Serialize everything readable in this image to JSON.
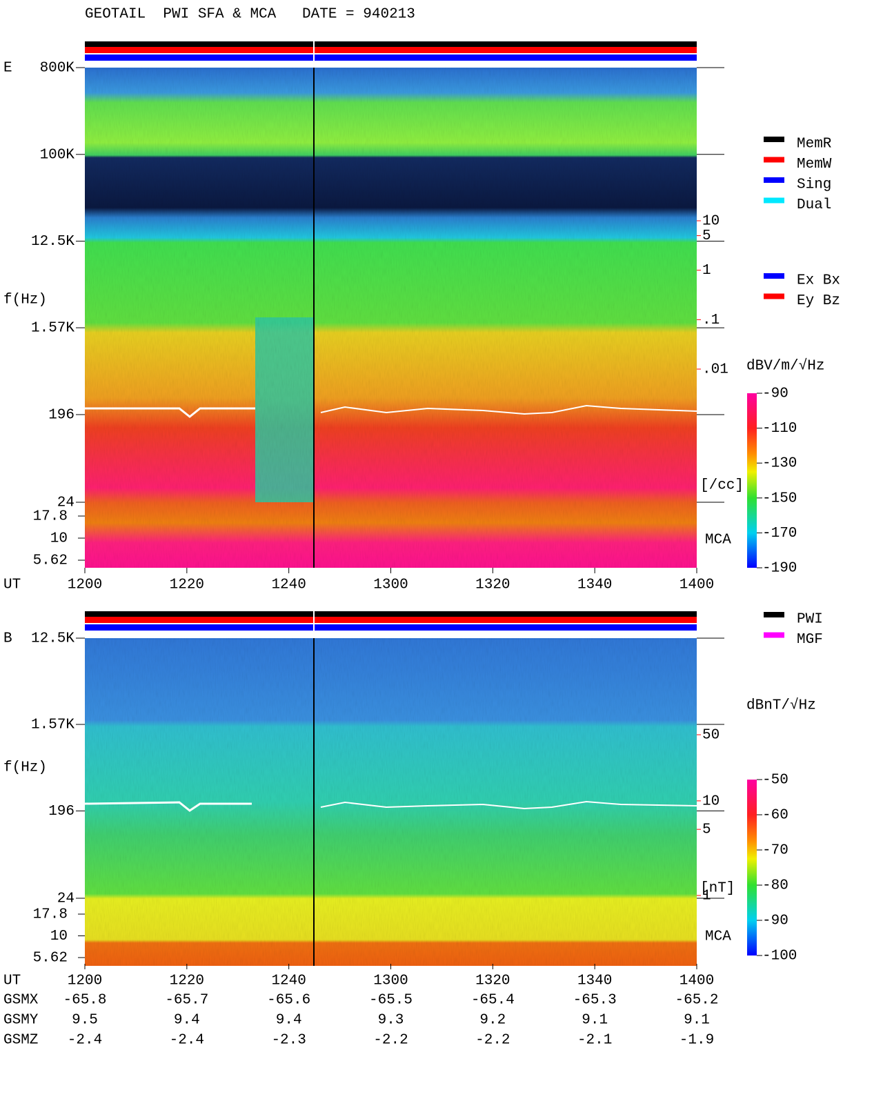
{
  "title": "GEOTAIL  PWI SFA & MCA   DATE = 940213",
  "chart_data": [
    {
      "type": "spectrogram",
      "panel": "E",
      "y_label": "f(Hz)",
      "x_label": "UT",
      "x_ticks": [
        "1200",
        "1220",
        "1240",
        "1300",
        "1320",
        "1340",
        "1400"
      ],
      "log_y": true,
      "ylim": [
        24,
        800000
      ],
      "yticks": [
        {
          "value": 800000,
          "label": "800K"
        },
        {
          "value": 100000,
          "label": "100K"
        },
        {
          "value": 12500,
          "label": "12.5K"
        },
        {
          "value": 1570,
          "label": "1.57K"
        },
        196,
        24
      ],
      "mca_label": "MCA",
      "mca_lim": [
        5.62,
        17.8
      ],
      "mca_ticks": [
        17.8,
        10,
        5.62
      ],
      "density_scale": {
        "log": true,
        "ylim": [
          0.01,
          10
        ],
        "ticks": [
          10,
          5,
          1,
          {
            "value": 0.1,
            "label": ".1"
          },
          {
            "value": 0.01,
            "label": ".01"
          }
        ],
        "unit": "[/cc]",
        "color": "#ff0000"
      },
      "colorbar": {
        "unit": "dBV/m/√Hz",
        "lim": [
          -190,
          -90
        ],
        "ticks": [
          -90,
          -110,
          -130,
          -150,
          -170,
          -190
        ]
      },
      "legend": [
        {
          "name": "MemR",
          "color": "#000000"
        },
        {
          "name": "MemW",
          "color": "#ff0000"
        },
        {
          "name": "Sing",
          "color": "#0000ff"
        },
        {
          "name": "Dual",
          "color": "#00e8ff"
        }
      ],
      "legend2": [
        {
          "name": "Ex Bx",
          "color": "#0000ff"
        },
        {
          "name": "Ey Bz",
          "color": "#ff0000"
        }
      ]
    },
    {
      "type": "spectrogram",
      "panel": "B",
      "y_label": "f(Hz)",
      "x_label": "UT",
      "x_ticks": [
        "1200",
        "1220",
        "1240",
        "1300",
        "1320",
        "1340",
        "1400"
      ],
      "log_y": true,
      "ylim": [
        24,
        12500
      ],
      "yticks": [
        {
          "value": 12500,
          "label": "12.5K"
        },
        {
          "value": 1570,
          "label": "1.57K"
        },
        196,
        24
      ],
      "mca_label": "MCA",
      "mca_lim": [
        5.62,
        17.8
      ],
      "mca_ticks": [
        17.8,
        10,
        5.62
      ],
      "density_scale": {
        "log": true,
        "ylim": [
          1,
          50
        ],
        "ticks": [
          50,
          10,
          5,
          1
        ],
        "unit": "[nT]",
        "color": "#ff0000"
      },
      "colorbar": {
        "unit": "dBnT/√Hz",
        "lim": [
          -100,
          -50
        ],
        "ticks": [
          -50,
          -60,
          -70,
          -80,
          -90,
          -100
        ]
      },
      "legend": [
        {
          "name": "PWI",
          "color": "#000000"
        },
        {
          "name": "MGF",
          "color": "#ff00ff"
        }
      ],
      "legend2": []
    }
  ],
  "orbit": {
    "rows": [
      {
        "name": "GSMX",
        "values": [
          -65.8,
          -65.7,
          -65.6,
          -65.5,
          -65.4,
          -65.3,
          -65.2
        ]
      },
      {
        "name": "GSMY",
        "values": [
          9.5,
          9.4,
          9.4,
          9.3,
          9.2,
          9.1,
          9.1
        ]
      },
      {
        "name": "GSMZ",
        "values": [
          -2.4,
          -2.4,
          -2.3,
          -2.2,
          -2.2,
          -2.1,
          -1.9
        ]
      }
    ]
  }
}
